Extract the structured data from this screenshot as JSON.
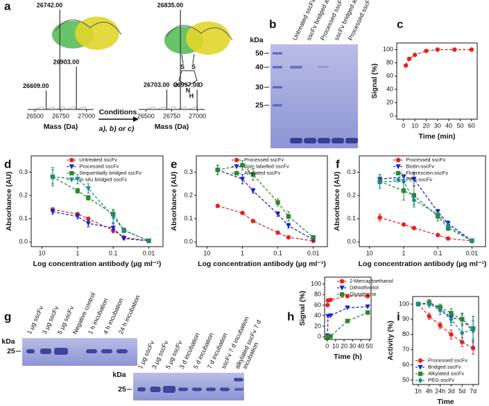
{
  "chart_data": [
    {
      "type": "spectrum",
      "panel": "a",
      "x": [
        26609,
        26742,
        26903
      ],
      "values": [
        19,
        100,
        43
      ],
      "value_labels": [
        "26609.00",
        "26742.00",
        "26903.00"
      ],
      "xlim": [
        26430,
        27070
      ],
      "xticks": [
        26500,
        26750,
        27000
      ],
      "xlabel": "Mass (Da)",
      "color": "#333333"
    },
    {
      "type": "spectrum",
      "x": [
        26703,
        26835,
        26997
      ],
      "values": [
        20,
        100,
        20
      ],
      "value_labels": [
        "26703.00",
        "26835.00",
        "26997.00"
      ],
      "xlim": [
        26430,
        27070
      ],
      "xticks": [
        26500,
        26750,
        27000
      ],
      "xlabel": "Mass (Da)",
      "color": "#333333"
    },
    {
      "type": "line",
      "panel": "c",
      "x": [
        2,
        5,
        10,
        20,
        30,
        45,
        60
      ],
      "series": [
        {
          "color": "#e8211b",
          "marker": "circle",
          "values": [
            76,
            86,
            92,
            98,
            100,
            100,
            100
          ]
        }
      ],
      "xlim": [
        -6,
        65
      ],
      "ylim": [
        -5,
        110
      ],
      "xticks": [
        0,
        10,
        20,
        30,
        40,
        50,
        60
      ],
      "yticks": [
        0,
        20,
        40,
        60,
        80,
        100
      ],
      "xlabel": "Time (min)",
      "ylabel": "Signal (%)"
    },
    {
      "type": "line",
      "panel": "d",
      "xscale": "log",
      "x": [
        5,
        1,
        0.5,
        0.1,
        0.05,
        0.01
      ],
      "series": [
        {
          "name": "Untreated sscFv",
          "color": "#e8211b",
          "marker": "circle",
          "values": [
            0.14,
            0.12,
            0.1,
            0.05,
            0.02,
            0.005
          ]
        },
        {
          "name": "Processed sscFv",
          "color": "#1a22c9",
          "marker": "triangle-down",
          "values": [
            0.13,
            0.11,
            0.08,
            0.06,
            0.015,
            0.005
          ],
          "errors": [
            0.01,
            0.01,
            0.015,
            0.02,
            0.005,
            0.003
          ]
        },
        {
          "name": "Sequentially bridged sscFv",
          "color": "#2a8a2a",
          "marker": "square",
          "values": [
            0.28,
            0.22,
            0.19,
            0.12,
            0.05,
            0.005
          ],
          "errors": [
            0.03,
            0.01,
            0.01,
            0.02,
            0.01,
            0.003
          ]
        },
        {
          "name": "In situ bridged sscFv",
          "color": "#1a8a8a",
          "marker": "triangle-down",
          "values": [
            0.28,
            0.27,
            0.23,
            0.11,
            0.05,
            0.005
          ],
          "errors": [
            0.04,
            0.02,
            0.02,
            0.025,
            0.01,
            0.003
          ]
        }
      ],
      "xlim": [
        20,
        0.004
      ],
      "ylim": [
        -0.02,
        0.37
      ],
      "xticks": [
        10,
        1,
        0.1,
        0.01
      ],
      "yticks": [
        {
          "value": 0,
          "label": "0.0"
        },
        0.1,
        0.2,
        0.3
      ],
      "xlabel": "Log concentration antibody (µg ml⁻¹)",
      "ylabel": "Absorbance (AU)",
      "legend": "upper right"
    },
    {
      "type": "line",
      "panel": "e",
      "xscale": "log",
      "x": [
        5,
        1,
        0.5,
        0.1,
        0.05,
        0.01
      ],
      "series": [
        {
          "name": "Processed sscFv",
          "color": "#e8211b",
          "marker": "circle",
          "values": [
            0.155,
            0.125,
            0.09,
            0.04,
            0.02,
            0.005
          ]
        },
        {
          "name": "Spin labelled sscFv",
          "color": "#1a22c9",
          "marker": "triangle-down",
          "values": [
            0.31,
            0.27,
            0.22,
            0.12,
            0.07,
            0.01
          ],
          "errors": [
            0.02,
            0.02,
            0.01,
            0.01,
            0.01,
            0.003
          ]
        },
        {
          "name": "Alkylated sscFv",
          "color": "#2a8a2a",
          "marker": "square",
          "values": [
            0.31,
            0.33,
            0.29,
            0.17,
            0.11,
            0.02
          ],
          "errors": [
            0.02,
            0.02,
            0.025,
            0.015,
            0.02,
            0.005
          ]
        }
      ],
      "xlim": [
        20,
        0.004
      ],
      "ylim": [
        -0.02,
        0.37
      ],
      "xticks": [
        10,
        1,
        0.1,
        0.01
      ],
      "yticks": [
        {
          "value": 0,
          "label": "0.0"
        },
        0.1,
        0.2,
        0.3
      ],
      "xlabel": "Log concentration antibody (µg ml⁻¹)",
      "ylabel": "Absorbance (AU)",
      "legend": "upper right"
    },
    {
      "type": "line",
      "panel": "f",
      "xscale": "log",
      "x": [
        5,
        1,
        0.5,
        0.1,
        0.05,
        0.01
      ],
      "series": [
        {
          "name": "Processed sscFv",
          "color": "#e8211b",
          "marker": "circle",
          "values": [
            0.105,
            0.075,
            0.06,
            0.03,
            0.015,
            0.005
          ],
          "errors": [
            0.015,
            0.005,
            0.005,
            0.005,
            0.003,
            0.002
          ]
        },
        {
          "name": "Biotin-sscFv",
          "color": "#1a22c9",
          "marker": "triangle-down",
          "values": [
            0.27,
            0.28,
            0.27,
            0.13,
            0.08,
            0.005
          ],
          "errors": [
            0.02,
            0.01,
            0.03,
            0.01,
            0.01,
            0.003
          ]
        },
        {
          "name": "Fluorescein-sscFv",
          "color": "#2a8a2a",
          "marker": "square",
          "values": [
            0.26,
            0.22,
            0.2,
            0.11,
            0.06,
            0.005
          ],
          "errors": [
            0.03,
            0.04,
            0.04,
            0.02,
            0.01,
            0.003
          ]
        },
        {
          "name": "PEG-sscFv",
          "color": "#1a8a8a",
          "marker": "diamond",
          "values": [
            0.26,
            0.26,
            0.18,
            0.12,
            0.07,
            0.005
          ],
          "errors": [
            0.03,
            0.03,
            0.03,
            0.01,
            0.01,
            0.003
          ]
        }
      ],
      "xlim": [
        20,
        0.004
      ],
      "ylim": [
        -0.02,
        0.37
      ],
      "xticks": [
        10,
        1,
        0.1,
        0.01
      ],
      "yticks": [
        {
          "value": 0,
          "label": "0.0"
        },
        0.1,
        0.2,
        0.3
      ],
      "xlabel": "Log concentration antibody (µg ml⁻¹)",
      "ylabel": "Absorbance (AU)",
      "legend": "upper right"
    },
    {
      "type": "line",
      "panel": "h",
      "x": [
        0.5,
        1,
        4,
        24,
        48
      ],
      "series": [
        {
          "name": "2-Mercaptoethanol",
          "color": "#e8211b",
          "marker": "circle",
          "values": [
            60,
            69,
            70,
            77,
            77
          ]
        },
        {
          "name": "Dithiothreitol",
          "color": "#1a22c9",
          "marker": "triangle-down",
          "values": [
            2,
            39,
            40,
            55,
            57
          ]
        },
        {
          "name": "Glutathione",
          "color": "#2a8a2a",
          "marker": "square",
          "values": [
            0,
            0,
            1,
            30,
            46
          ]
        }
      ],
      "xlim": [
        -3,
        52
      ],
      "ylim": [
        -5,
        113
      ],
      "xticks": [
        0,
        10,
        20,
        30,
        40,
        50
      ],
      "yticks": [
        0,
        20,
        40,
        60,
        80,
        100
      ],
      "xlabel": "Time (h)",
      "ylabel": "Signal (%)",
      "legend": "upper right"
    },
    {
      "type": "line",
      "panel": "i",
      "categories": [
        "1h",
        "4h",
        "24h",
        "3d",
        "5d",
        "7d"
      ],
      "series": [
        {
          "name": "Processed sscFv",
          "color": "#e8211b",
          "marker": "circle",
          "values": [
            100,
            92,
            86,
            80,
            75,
            71
          ],
          "errors": [
            1,
            2,
            2,
            3,
            3,
            4
          ]
        },
        {
          "name": "Bridged sscFv",
          "color": "#1a22c9",
          "marker": "triangle-down",
          "values": [
            100,
            101,
            97,
            91,
            90,
            82
          ],
          "errors": [
            1,
            2,
            2,
            3,
            4,
            10
          ]
        },
        {
          "name": "Alkylated sscFv",
          "color": "#2a8a2a",
          "marker": "square",
          "values": [
            100,
            101,
            98,
            94,
            90,
            84
          ],
          "errors": [
            1,
            2,
            2,
            3,
            3,
            8
          ]
        },
        {
          "name": "PEG-sscFv",
          "color": "#1a8a8a",
          "marker": "diamond",
          "values": [
            100,
            100,
            96,
            90,
            81,
            83
          ],
          "errors": [
            1,
            2,
            3,
            4,
            5,
            6
          ]
        }
      ],
      "ylim": [
        47,
        105
      ],
      "yticks": [
        50,
        60,
        70,
        80,
        90,
        100
      ],
      "xlabel": "Time",
      "ylabel": "Activity (%)",
      "legend": "lower left"
    }
  ],
  "figure": {
    "a": {
      "arrow_label": "Conditions",
      "conditions": "a), b) or c)",
      "atoms": [
        "S",
        "S",
        "O",
        "N",
        "H",
        "O"
      ]
    },
    "b": {
      "panel": "b",
      "unit": "kDa",
      "markers": [
        50,
        40,
        30,
        25
      ],
      "lanes": [
        "Untreated sscFv",
        "sscFv bridged as a)",
        "Processed sscFv as a)",
        "sscFv bridged as b)",
        "Processed sscFv as b)"
      ]
    },
    "g": {
      "panel": "g",
      "gels": [
        {
          "unit": "kDa",
          "markers": [
            25
          ],
          "lanes": [
            [
              "1 µg sscFv"
            ],
            [
              "3 µg sscFv"
            ],
            [
              "5 µg sscFv"
            ],
            [
              "Negative control"
            ],
            [
              "1 h incubation"
            ],
            [
              "4 h incubation"
            ],
            [
              "24 h incubation"
            ]
          ]
        },
        {
          "unit": "kDa",
          "markers": [
            25
          ],
          "lanes": [
            [
              "1 µg sscFv"
            ],
            [
              "3 µg sscFv"
            ],
            [
              "5 µg sscFv"
            ],
            [
              "3 d incubation"
            ],
            [
              "5 d incubation"
            ],
            [
              "7 d incubation"
            ],
            [
              "sscFv 7 d incubation"
            ],
            [
              "alkylated sscFv 7 d",
              "incubation"
            ]
          ]
        }
      ]
    }
  }
}
